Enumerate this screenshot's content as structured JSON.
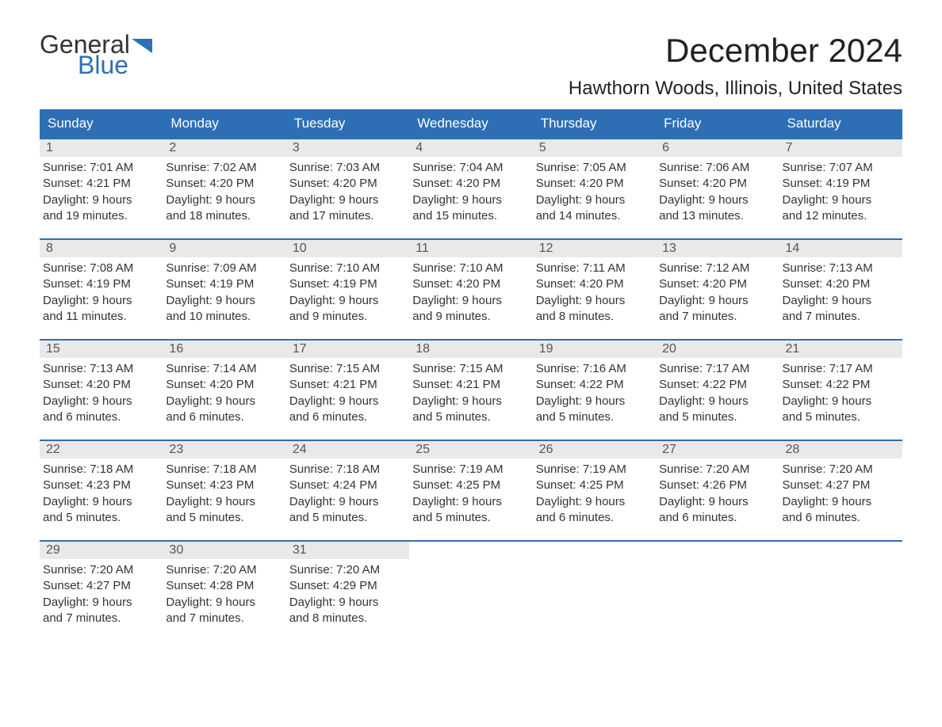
{
  "logo": {
    "line1": "General",
    "line2": "Blue"
  },
  "title": "December 2024",
  "location": "Hawthorn Woods, Illinois, United States",
  "colors": {
    "header_bg": "#2d6fb5",
    "header_text": "#ffffff",
    "daynum_bg": "#e9e9e9",
    "border": "#2d6fb5",
    "page_bg": "#ffffff",
    "text": "#333333"
  },
  "day_names": [
    "Sunday",
    "Monday",
    "Tuesday",
    "Wednesday",
    "Thursday",
    "Friday",
    "Saturday"
  ],
  "weeks": [
    [
      {
        "num": "1",
        "sunrise": "Sunrise: 7:01 AM",
        "sunset": "Sunset: 4:21 PM",
        "dl1": "Daylight: 9 hours",
        "dl2": "and 19 minutes."
      },
      {
        "num": "2",
        "sunrise": "Sunrise: 7:02 AM",
        "sunset": "Sunset: 4:20 PM",
        "dl1": "Daylight: 9 hours",
        "dl2": "and 18 minutes."
      },
      {
        "num": "3",
        "sunrise": "Sunrise: 7:03 AM",
        "sunset": "Sunset: 4:20 PM",
        "dl1": "Daylight: 9 hours",
        "dl2": "and 17 minutes."
      },
      {
        "num": "4",
        "sunrise": "Sunrise: 7:04 AM",
        "sunset": "Sunset: 4:20 PM",
        "dl1": "Daylight: 9 hours",
        "dl2": "and 15 minutes."
      },
      {
        "num": "5",
        "sunrise": "Sunrise: 7:05 AM",
        "sunset": "Sunset: 4:20 PM",
        "dl1": "Daylight: 9 hours",
        "dl2": "and 14 minutes."
      },
      {
        "num": "6",
        "sunrise": "Sunrise: 7:06 AM",
        "sunset": "Sunset: 4:20 PM",
        "dl1": "Daylight: 9 hours",
        "dl2": "and 13 minutes."
      },
      {
        "num": "7",
        "sunrise": "Sunrise: 7:07 AM",
        "sunset": "Sunset: 4:19 PM",
        "dl1": "Daylight: 9 hours",
        "dl2": "and 12 minutes."
      }
    ],
    [
      {
        "num": "8",
        "sunrise": "Sunrise: 7:08 AM",
        "sunset": "Sunset: 4:19 PM",
        "dl1": "Daylight: 9 hours",
        "dl2": "and 11 minutes."
      },
      {
        "num": "9",
        "sunrise": "Sunrise: 7:09 AM",
        "sunset": "Sunset: 4:19 PM",
        "dl1": "Daylight: 9 hours",
        "dl2": "and 10 minutes."
      },
      {
        "num": "10",
        "sunrise": "Sunrise: 7:10 AM",
        "sunset": "Sunset: 4:19 PM",
        "dl1": "Daylight: 9 hours",
        "dl2": "and 9 minutes."
      },
      {
        "num": "11",
        "sunrise": "Sunrise: 7:10 AM",
        "sunset": "Sunset: 4:20 PM",
        "dl1": "Daylight: 9 hours",
        "dl2": "and 9 minutes."
      },
      {
        "num": "12",
        "sunrise": "Sunrise: 7:11 AM",
        "sunset": "Sunset: 4:20 PM",
        "dl1": "Daylight: 9 hours",
        "dl2": "and 8 minutes."
      },
      {
        "num": "13",
        "sunrise": "Sunrise: 7:12 AM",
        "sunset": "Sunset: 4:20 PM",
        "dl1": "Daylight: 9 hours",
        "dl2": "and 7 minutes."
      },
      {
        "num": "14",
        "sunrise": "Sunrise: 7:13 AM",
        "sunset": "Sunset: 4:20 PM",
        "dl1": "Daylight: 9 hours",
        "dl2": "and 7 minutes."
      }
    ],
    [
      {
        "num": "15",
        "sunrise": "Sunrise: 7:13 AM",
        "sunset": "Sunset: 4:20 PM",
        "dl1": "Daylight: 9 hours",
        "dl2": "and 6 minutes."
      },
      {
        "num": "16",
        "sunrise": "Sunrise: 7:14 AM",
        "sunset": "Sunset: 4:20 PM",
        "dl1": "Daylight: 9 hours",
        "dl2": "and 6 minutes."
      },
      {
        "num": "17",
        "sunrise": "Sunrise: 7:15 AM",
        "sunset": "Sunset: 4:21 PM",
        "dl1": "Daylight: 9 hours",
        "dl2": "and 6 minutes."
      },
      {
        "num": "18",
        "sunrise": "Sunrise: 7:15 AM",
        "sunset": "Sunset: 4:21 PM",
        "dl1": "Daylight: 9 hours",
        "dl2": "and 5 minutes."
      },
      {
        "num": "19",
        "sunrise": "Sunrise: 7:16 AM",
        "sunset": "Sunset: 4:22 PM",
        "dl1": "Daylight: 9 hours",
        "dl2": "and 5 minutes."
      },
      {
        "num": "20",
        "sunrise": "Sunrise: 7:17 AM",
        "sunset": "Sunset: 4:22 PM",
        "dl1": "Daylight: 9 hours",
        "dl2": "and 5 minutes."
      },
      {
        "num": "21",
        "sunrise": "Sunrise: 7:17 AM",
        "sunset": "Sunset: 4:22 PM",
        "dl1": "Daylight: 9 hours",
        "dl2": "and 5 minutes."
      }
    ],
    [
      {
        "num": "22",
        "sunrise": "Sunrise: 7:18 AM",
        "sunset": "Sunset: 4:23 PM",
        "dl1": "Daylight: 9 hours",
        "dl2": "and 5 minutes."
      },
      {
        "num": "23",
        "sunrise": "Sunrise: 7:18 AM",
        "sunset": "Sunset: 4:23 PM",
        "dl1": "Daylight: 9 hours",
        "dl2": "and 5 minutes."
      },
      {
        "num": "24",
        "sunrise": "Sunrise: 7:18 AM",
        "sunset": "Sunset: 4:24 PM",
        "dl1": "Daylight: 9 hours",
        "dl2": "and 5 minutes."
      },
      {
        "num": "25",
        "sunrise": "Sunrise: 7:19 AM",
        "sunset": "Sunset: 4:25 PM",
        "dl1": "Daylight: 9 hours",
        "dl2": "and 5 minutes."
      },
      {
        "num": "26",
        "sunrise": "Sunrise: 7:19 AM",
        "sunset": "Sunset: 4:25 PM",
        "dl1": "Daylight: 9 hours",
        "dl2": "and 6 minutes."
      },
      {
        "num": "27",
        "sunrise": "Sunrise: 7:20 AM",
        "sunset": "Sunset: 4:26 PM",
        "dl1": "Daylight: 9 hours",
        "dl2": "and 6 minutes."
      },
      {
        "num": "28",
        "sunrise": "Sunrise: 7:20 AM",
        "sunset": "Sunset: 4:27 PM",
        "dl1": "Daylight: 9 hours",
        "dl2": "and 6 minutes."
      }
    ],
    [
      {
        "num": "29",
        "sunrise": "Sunrise: 7:20 AM",
        "sunset": "Sunset: 4:27 PM",
        "dl1": "Daylight: 9 hours",
        "dl2": "and 7 minutes."
      },
      {
        "num": "30",
        "sunrise": "Sunrise: 7:20 AM",
        "sunset": "Sunset: 4:28 PM",
        "dl1": "Daylight: 9 hours",
        "dl2": "and 7 minutes."
      },
      {
        "num": "31",
        "sunrise": "Sunrise: 7:20 AM",
        "sunset": "Sunset: 4:29 PM",
        "dl1": "Daylight: 9 hours",
        "dl2": "and 8 minutes."
      },
      {
        "empty": true
      },
      {
        "empty": true
      },
      {
        "empty": true
      },
      {
        "empty": true
      }
    ]
  ]
}
